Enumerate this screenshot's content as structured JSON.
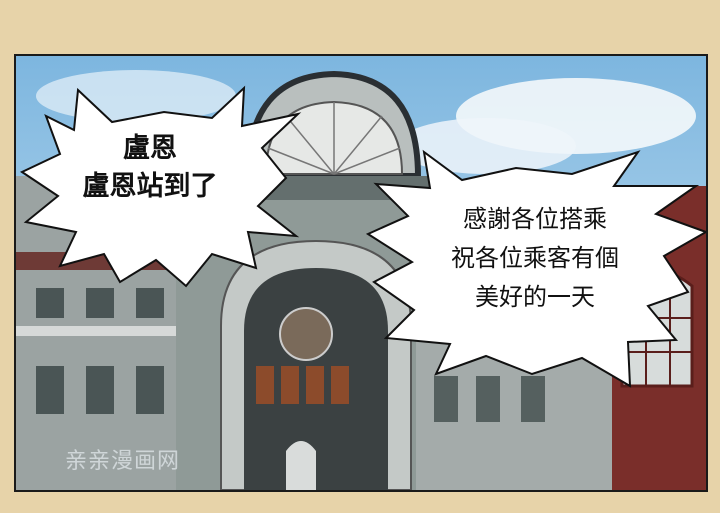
{
  "bubble_left": {
    "lines": [
      "盧恩",
      "盧恩站到了"
    ]
  },
  "bubble_right": {
    "lines": [
      "感謝各位搭乘",
      "祝各位乘客有個",
      "美好的一天"
    ]
  },
  "watermark": "亲亲漫画网",
  "colors": {
    "page_bg": "#e7d3a9",
    "sky": "#8fc3e6",
    "building": "#8f9a97",
    "brick": "#7a2e2a"
  }
}
